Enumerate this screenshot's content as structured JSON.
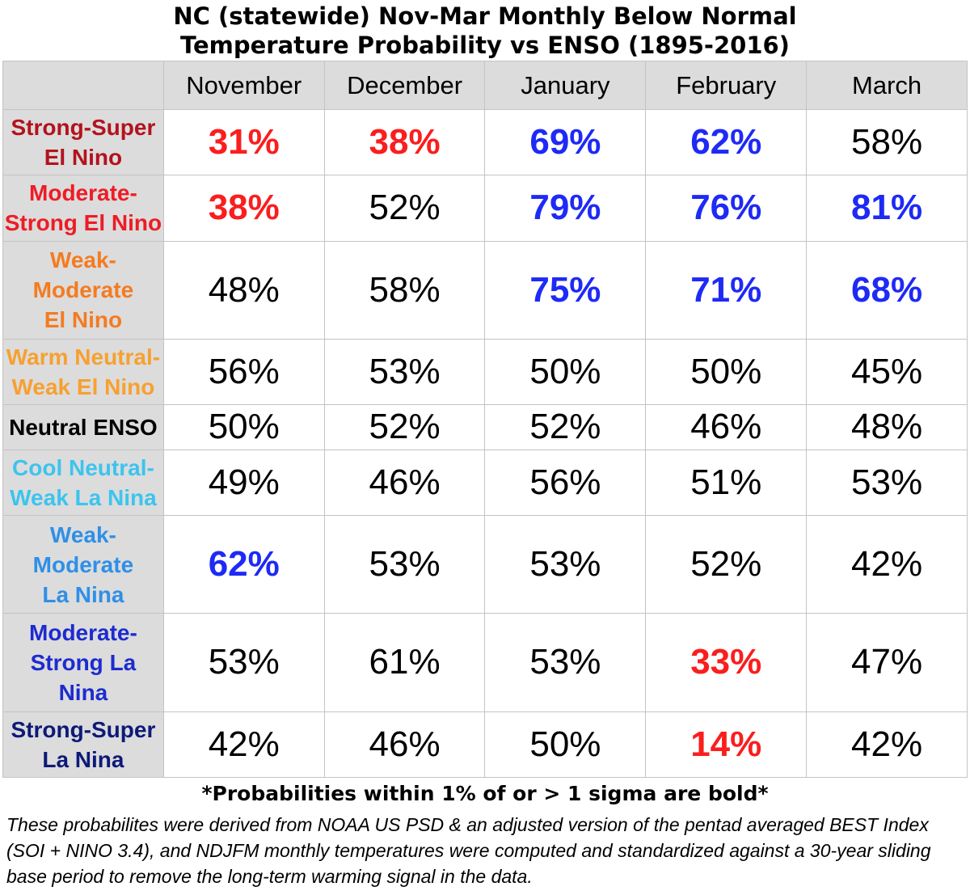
{
  "title_line1": "NC (statewide) Nov-Mar Monthly Below Normal",
  "title_line2": "Temperature Probability vs ENSO (1895-2016)",
  "colors": {
    "warm_bold": "#fa1e1e",
    "cold_bold": "#1e2af5",
    "header_bg": "#dcdcdc"
  },
  "footnote": "*Probabilities within 1% of or > 1 sigma are bold*",
  "notes": "These probabilites were derived from NOAA US PSD & an adjusted version of the pentad averaged BEST Index (SOI + NINO 3.4), and NDJFM monthly temperatures were computed and standardized against a 30-year sliding base period to remove the long-term warming signal in the data.",
  "chart_data": {
    "type": "table",
    "title": "NC (statewide) Nov-Mar Monthly Below Normal Temperature Probability vs ENSO (1895-2016)",
    "columns": [
      "November",
      "December",
      "January",
      "February",
      "March"
    ],
    "rows": [
      {
        "label": "Strong-Super El Nino",
        "label_lines": [
          "Strong-Super",
          "El Nino"
        ],
        "color": "#b3121d",
        "values": [
          "31%",
          "38%",
          "69%",
          "62%",
          "58%"
        ],
        "style": [
          "warm",
          "warm",
          "cold",
          "cold",
          ""
        ]
      },
      {
        "label": "Moderate-Strong El Nino",
        "label_lines": [
          "Moderate-",
          "Strong El Nino"
        ],
        "color": "#ee1c25",
        "values": [
          "38%",
          "52%",
          "79%",
          "76%",
          "81%"
        ],
        "style": [
          "warm",
          "",
          "cold",
          "cold",
          "cold"
        ]
      },
      {
        "label": "Weak-Moderate El Nino",
        "label_lines": [
          "Weak-Moderate",
          "El Nino"
        ],
        "color": "#f47b20",
        "values": [
          "48%",
          "58%",
          "75%",
          "71%",
          "68%"
        ],
        "style": [
          "",
          "",
          "cold",
          "cold",
          "cold"
        ]
      },
      {
        "label": "Warm Neutral-Weak El Nino",
        "label_lines": [
          "Warm Neutral-",
          "Weak El Nino"
        ],
        "color": "#f7a030",
        "values": [
          "56%",
          "53%",
          "50%",
          "50%",
          "45%"
        ],
        "style": [
          "",
          "",
          "",
          "",
          ""
        ]
      },
      {
        "label": "Neutral ENSO",
        "label_lines": [
          "Neutral ENSO"
        ],
        "color": "#000000",
        "values": [
          "50%",
          "52%",
          "52%",
          "46%",
          "48%"
        ],
        "style": [
          "",
          "",
          "",
          "",
          ""
        ]
      },
      {
        "label": "Cool Neutral-Weak La Nina",
        "label_lines": [
          "Cool Neutral-",
          "Weak La Nina"
        ],
        "color": "#3cc4ee",
        "values": [
          "49%",
          "46%",
          "56%",
          "51%",
          "53%"
        ],
        "style": [
          "",
          "",
          "",
          "",
          ""
        ]
      },
      {
        "label": "Weak-Moderate La Nina",
        "label_lines": [
          "Weak-Moderate",
          "La Nina"
        ],
        "color": "#2f8fe8",
        "values": [
          "62%",
          "53%",
          "53%",
          "52%",
          "42%"
        ],
        "style": [
          "cold",
          "",
          "",
          "",
          ""
        ]
      },
      {
        "label": "Moderate-Strong La Nina",
        "label_lines": [
          "Moderate-",
          "Strong La Nina"
        ],
        "color": "#1d2bd0",
        "values": [
          "53%",
          "61%",
          "53%",
          "33%",
          "47%"
        ],
        "style": [
          "",
          "",
          "",
          "warm",
          ""
        ]
      },
      {
        "label": "Strong-Super La Nina",
        "label_lines": [
          "Strong-Super",
          "La Nina"
        ],
        "color": "#0d1a78",
        "values": [
          "42%",
          "46%",
          "50%",
          "14%",
          "42%"
        ],
        "style": [
          "",
          "",
          "",
          "warm",
          ""
        ]
      }
    ]
  }
}
